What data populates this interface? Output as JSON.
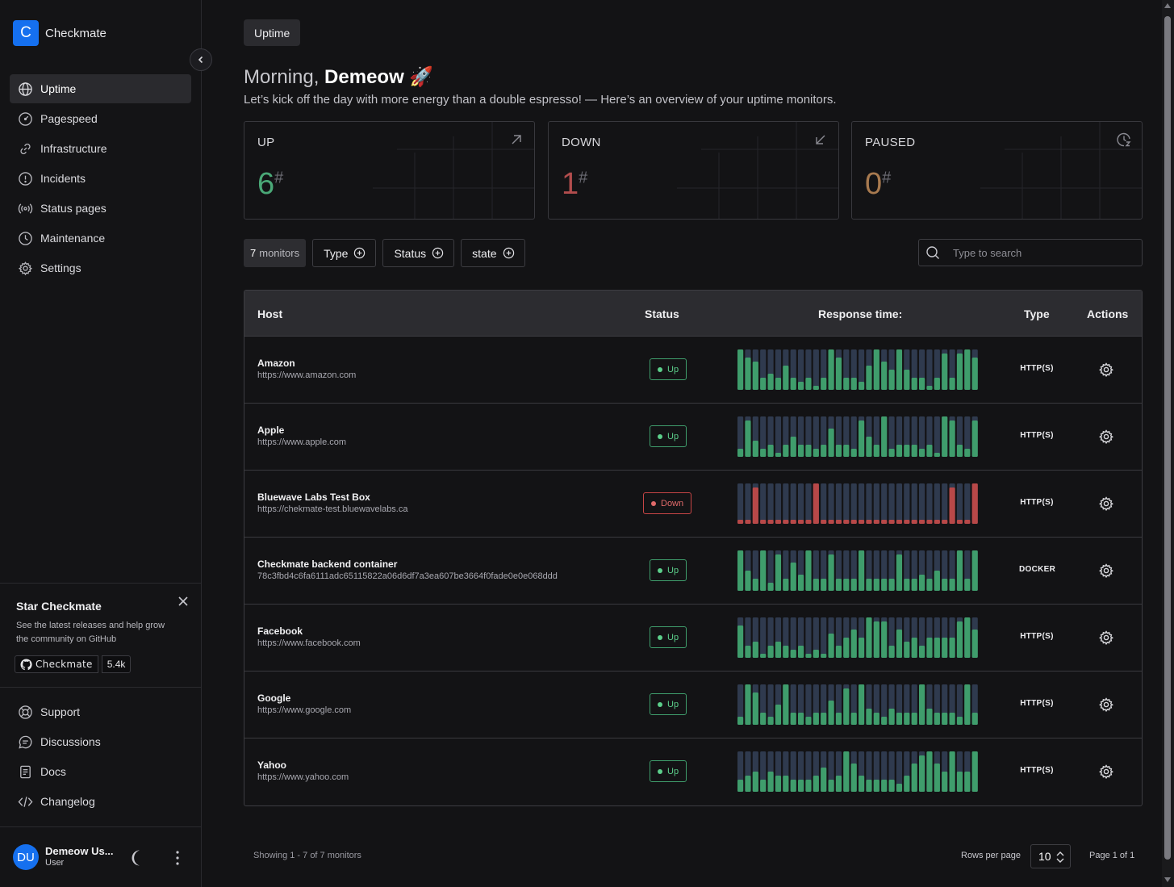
{
  "brand": {
    "logo_letter": "C",
    "name": "Checkmate"
  },
  "nav": {
    "items": [
      {
        "label": "Uptime",
        "icon": "globe-icon",
        "active": true
      },
      {
        "label": "Pagespeed",
        "icon": "gauge-icon"
      },
      {
        "label": "Infrastructure",
        "icon": "link-icon"
      },
      {
        "label": "Incidents",
        "icon": "alert-circle-icon"
      },
      {
        "label": "Status pages",
        "icon": "broadcast-icon"
      },
      {
        "label": "Maintenance",
        "icon": "clock-icon"
      },
      {
        "label": "Settings",
        "icon": "gear-icon"
      }
    ]
  },
  "star": {
    "title": "Star Checkmate",
    "text": "See the latest releases and help grow the community on GitHub",
    "badge_label": "Checkmate",
    "badge_count": "5.4k"
  },
  "nav2": {
    "items": [
      {
        "label": "Support",
        "icon": "lifebuoy-icon"
      },
      {
        "label": "Discussions",
        "icon": "chat-icon"
      },
      {
        "label": "Docs",
        "icon": "document-icon"
      },
      {
        "label": "Changelog",
        "icon": "code-icon"
      }
    ]
  },
  "user": {
    "initials": "DU",
    "name": "Demeow Us...",
    "role": "User"
  },
  "header": {
    "breadcrumb": "Uptime",
    "greeting_prefix": "Morning,",
    "greeting_name": "Demeow",
    "greeting_emoji": "🚀",
    "subtitle": "Let’s kick off the day with more energy than a double espresso! — Here’s an overview of your uptime monitors."
  },
  "stats": [
    {
      "label": "UP",
      "value": "6",
      "suffix": "#",
      "color": "#4aa877"
    },
    {
      "label": "DOWN",
      "value": "1",
      "suffix": "#",
      "color": "#b24d4d"
    },
    {
      "label": "PAUSED",
      "value": "0",
      "suffix": "#",
      "color": "#a87a4f"
    }
  ],
  "filters": {
    "count_number": "7",
    "count_label": "monitors",
    "type_label": "Type",
    "status_label": "Status",
    "state_label": "state",
    "search_placeholder": "Type to search"
  },
  "table": {
    "headers": {
      "host": "Host",
      "status": "Status",
      "response": "Response time:",
      "type": "Type",
      "actions": "Actions"
    },
    "colors": {
      "up_bar": "#3f9d6c",
      "down_bar": "#b84848",
      "empty_bar": "#2f3a4e"
    },
    "rows": [
      {
        "name": "Amazon",
        "url": "https://www.amazon.com",
        "status": "Up",
        "type": "HTTP(S)",
        "levels": [
          1,
          0.8,
          0.7,
          0.3,
          0.4,
          0.3,
          0.6,
          0.3,
          0.2,
          0.3,
          0.1,
          0.3,
          1,
          0.8,
          0.3,
          0.3,
          0.2,
          0.6,
          1,
          0.7,
          0.5,
          1,
          0.5,
          0.3,
          0.3,
          0.1,
          0.3,
          0.9,
          0.3,
          0.9,
          1,
          0.8
        ],
        "states": "uuuuuuuuuuuuuuuuuuuuuuuuuuuuuuuu"
      },
      {
        "name": "Apple",
        "url": "https://www.apple.com",
        "status": "Up",
        "type": "HTTP(S)",
        "levels": [
          0.2,
          0.9,
          0.4,
          0.2,
          0.3,
          0.1,
          0.3,
          0.5,
          0.3,
          0.3,
          0.2,
          0.3,
          0.7,
          0.3,
          0.3,
          0.2,
          0.9,
          0.5,
          0.3,
          1,
          0.2,
          0.3,
          0.3,
          0.3,
          0.2,
          0.3,
          0.1,
          1,
          0.9,
          0.3,
          0.2,
          0.9
        ],
        "states": "uuuuuuuuuuuuuuuuuuuuuuuuuuuuuuuu"
      },
      {
        "name": "Bluewave Labs Test Box",
        "url": "https://chekmate-test.bluewavelabs.ca",
        "status": "Down",
        "type": "HTTP(S)",
        "levels": [
          0.1,
          0.1,
          0.9,
          0.1,
          0.1,
          0.1,
          0.1,
          0.1,
          0.1,
          0.1,
          1,
          0.1,
          0.1,
          0.1,
          0.1,
          0.1,
          0.1,
          0.1,
          0.1,
          0.1,
          0.1,
          0.1,
          0.1,
          0.1,
          0.1,
          0.1,
          0.1,
          0.1,
          0.9,
          0.1,
          0.1,
          1
        ],
        "states": "dddddddddddddddddddddddddddddddd"
      },
      {
        "name": "Checkmate backend container",
        "url": "78c3fbd4c6fa6111adc65115822a06d6df7a3ea607be3664f0fade0e0e068ddd",
        "status": "Up",
        "type": "DOCKER",
        "levels": [
          1,
          0.5,
          0.3,
          1,
          0.2,
          0.9,
          0.3,
          0.7,
          0.4,
          1,
          0.3,
          0.3,
          0.9,
          0.3,
          0.3,
          0.3,
          1,
          0.3,
          0.3,
          0.3,
          0.3,
          0.9,
          0.3,
          0.3,
          0.4,
          0.3,
          0.5,
          0.3,
          0.3,
          1,
          0.3,
          1
        ],
        "states": "uuuuuuuuuuuuuuuuuuuuuuuuuuuuuuuu"
      },
      {
        "name": "Facebook",
        "url": "https://www.facebook.com",
        "status": "Up",
        "type": "HTTP(S)",
        "levels": [
          0.8,
          0.3,
          0.4,
          0.1,
          0.3,
          0.4,
          0.3,
          0.2,
          0.3,
          0.1,
          0.2,
          0.1,
          0.6,
          0.3,
          0.5,
          0.7,
          0.5,
          1,
          0.9,
          0.9,
          0.3,
          0.7,
          0.4,
          0.5,
          0.3,
          0.5,
          0.5,
          0.5,
          0.5,
          0.9,
          1,
          0.7
        ],
        "states": "uuuuuuuuuuuuuuuuuuuuuuuuuuuuuuuu"
      },
      {
        "name": "Google",
        "url": "https://www.google.com",
        "status": "Up",
        "type": "HTTP(S)",
        "levels": [
          0.2,
          1,
          0.8,
          0.3,
          0.2,
          0.5,
          1,
          0.3,
          0.3,
          0.2,
          0.3,
          0.3,
          0.6,
          0.3,
          0.9,
          0.3,
          1,
          0.4,
          0.3,
          0.2,
          0.4,
          0.3,
          0.3,
          0.3,
          1,
          0.4,
          0.3,
          0.3,
          0.3,
          0.2,
          1,
          0.3
        ],
        "states": "uuuuuuuuuuuuuuuuuuuuuuuuuuuuuuuu"
      },
      {
        "name": "Yahoo",
        "url": "https://www.yahoo.com",
        "status": "Up",
        "type": "HTTP(S)",
        "levels": [
          0.3,
          0.4,
          0.5,
          0.3,
          0.5,
          0.4,
          0.4,
          0.3,
          0.3,
          0.3,
          0.4,
          0.6,
          0.3,
          0.4,
          1,
          0.7,
          0.4,
          0.3,
          0.3,
          0.3,
          0.3,
          0.2,
          0.4,
          0.7,
          0.9,
          1,
          0.7,
          0.5,
          1,
          0.5,
          0.5,
          1
        ],
        "states": "uuuuuuuuuuuuuuuuuuuuuuuuuuuuuuuu"
      }
    ]
  },
  "footer": {
    "showing": "Showing 1 - 7 of 7 monitors",
    "rows_per_page_label": "Rows per page",
    "rows_per_page_value": "10",
    "page_label": "Page 1 of 1"
  }
}
